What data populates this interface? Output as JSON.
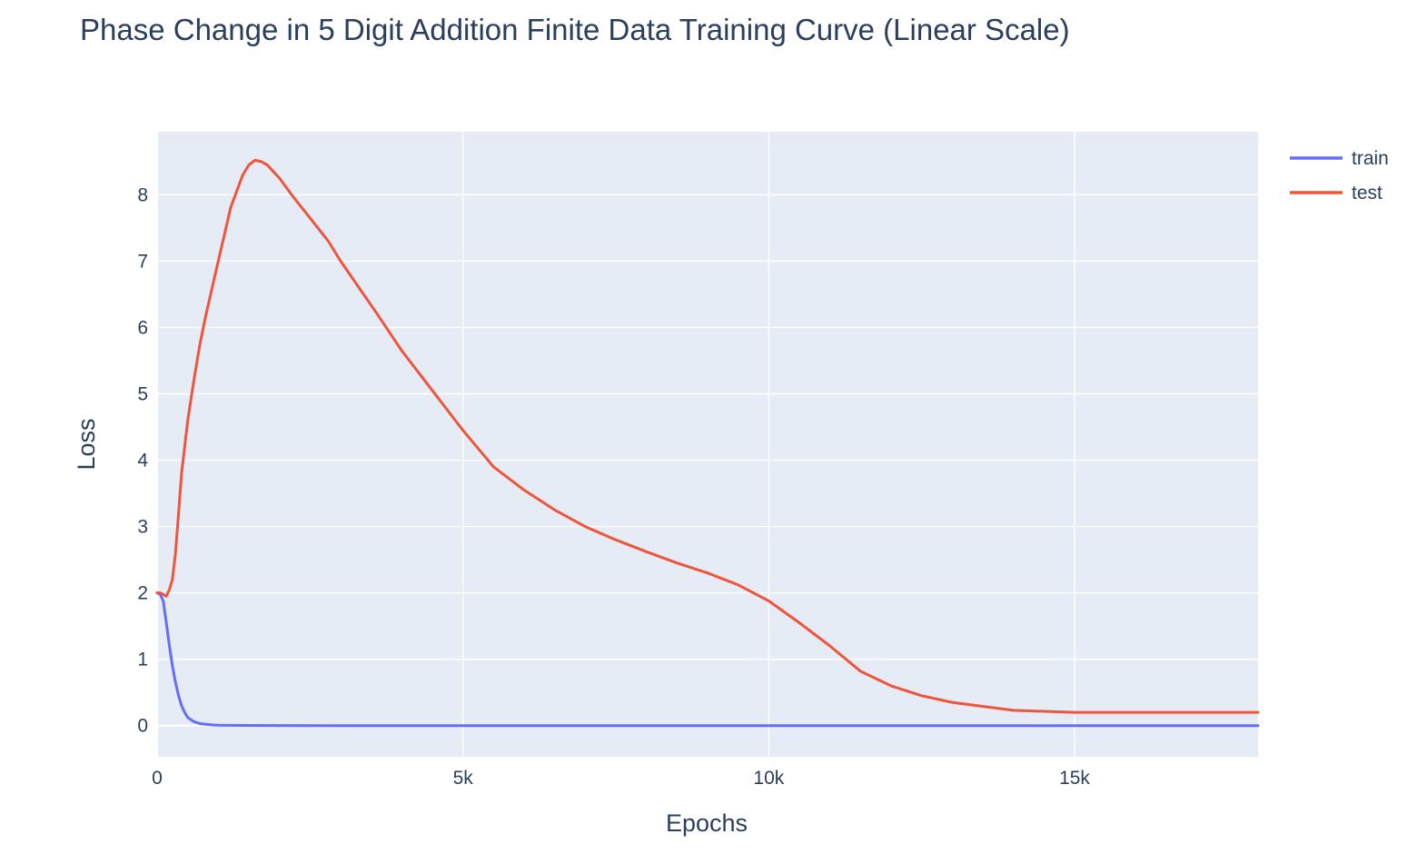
{
  "chart_data": {
    "type": "line",
    "title": "Phase Change in 5 Digit Addition Finite Data Training Curve (Linear Scale)",
    "xlabel": "Epochs",
    "ylabel": "Loss",
    "xlim": [
      0,
      18000
    ],
    "ylim": [
      -0.47,
      8.95
    ],
    "grid": true,
    "legend_position": "top-right",
    "plot_background": "#e5ecf6",
    "x_ticks": [
      {
        "value": 0,
        "label": "0"
      },
      {
        "value": 5000,
        "label": "5k"
      },
      {
        "value": 10000,
        "label": "10k"
      },
      {
        "value": 15000,
        "label": "15k"
      }
    ],
    "y_ticks": [
      {
        "value": 0,
        "label": "0"
      },
      {
        "value": 1,
        "label": "1"
      },
      {
        "value": 2,
        "label": "2"
      },
      {
        "value": 3,
        "label": "3"
      },
      {
        "value": 4,
        "label": "4"
      },
      {
        "value": 5,
        "label": "5"
      },
      {
        "value": 6,
        "label": "6"
      },
      {
        "value": 7,
        "label": "7"
      },
      {
        "value": 8,
        "label": "8"
      }
    ],
    "series": [
      {
        "name": "train",
        "color": "#636efa",
        "x": [
          0,
          50,
          100,
          150,
          200,
          250,
          300,
          350,
          400,
          450,
          500,
          600,
          700,
          800,
          900,
          1000,
          1500,
          2000,
          3000,
          5000,
          8000,
          10000,
          12000,
          15000,
          18000
        ],
        "y": [
          2.0,
          1.98,
          1.88,
          1.55,
          1.2,
          0.9,
          0.65,
          0.45,
          0.3,
          0.2,
          0.12,
          0.06,
          0.03,
          0.02,
          0.01,
          0.005,
          0.002,
          0.001,
          0.0,
          0.0,
          0.0,
          0.0,
          0.0,
          0.0,
          0.0
        ]
      },
      {
        "name": "test",
        "color": "#ef553b",
        "x": [
          0,
          50,
          100,
          150,
          200,
          250,
          300,
          350,
          400,
          450,
          500,
          600,
          700,
          800,
          900,
          1000,
          1100,
          1200,
          1300,
          1400,
          1500,
          1600,
          1700,
          1800,
          1900,
          2000,
          2200,
          2500,
          2800,
          3000,
          3300,
          3600,
          4000,
          4500,
          5000,
          5500,
          6000,
          6500,
          7000,
          7500,
          8000,
          8500,
          9000,
          9500,
          10000,
          10500,
          11000,
          11500,
          12000,
          12500,
          13000,
          14000,
          15000,
          16000,
          17000,
          18000
        ],
        "y": [
          2.0,
          2.0,
          1.98,
          1.95,
          2.05,
          2.2,
          2.6,
          3.2,
          3.8,
          4.2,
          4.6,
          5.2,
          5.75,
          6.2,
          6.6,
          7.0,
          7.4,
          7.8,
          8.05,
          8.3,
          8.45,
          8.52,
          8.5,
          8.45,
          8.35,
          8.25,
          8.0,
          7.65,
          7.3,
          7.0,
          6.6,
          6.2,
          5.65,
          5.05,
          4.45,
          3.9,
          3.55,
          3.25,
          3.0,
          2.8,
          2.62,
          2.45,
          2.3,
          2.12,
          1.88,
          1.55,
          1.2,
          0.82,
          0.6,
          0.45,
          0.35,
          0.23,
          0.2,
          0.2,
          0.2,
          0.2
        ]
      }
    ]
  }
}
